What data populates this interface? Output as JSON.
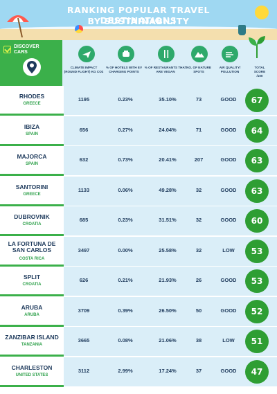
{
  "title": {
    "line1": "RANKING POPULAR TRAVEL DESTINATIONS",
    "line2": "BY SUSTAINABILITY"
  },
  "brand": {
    "label": "DISCOVER CARS"
  },
  "columns": [
    {
      "label": "CLIMATE IMPACT (ROUND FLIGHT) KG CO2",
      "icon": "plane-icon"
    },
    {
      "label": "% OF HOTELS WITH EV CHARGING POINTS",
      "icon": "ev-car-icon"
    },
    {
      "label": "% OF RESTAURANTS THAT ARE VEGAN",
      "icon": "cutlery-icon"
    },
    {
      "label": "NO. OF NATURE SPOTS",
      "icon": "mountain-icon"
    },
    {
      "label": "AIR QUALITY/ POLLUTION",
      "icon": "wind-icon"
    },
    {
      "label": "TOTAL SCORE /100",
      "icon": "plant-icon"
    }
  ],
  "rows": [
    {
      "city": "RHODES",
      "country": "GREECE",
      "co2": "1195",
      "ev": "0.23%",
      "vegan": "35.10%",
      "nature": "73",
      "air": "GOOD",
      "score": "67"
    },
    {
      "city": "IBIZA",
      "country": "SPAIN",
      "co2": "656",
      "ev": "0.27%",
      "vegan": "24.04%",
      "nature": "71",
      "air": "GOOD",
      "score": "64"
    },
    {
      "city": "MAJORCA",
      "country": "SPAIN",
      "co2": "632",
      "ev": "0.73%",
      "vegan": "20.41%",
      "nature": "207",
      "air": "GOOD",
      "score": "63"
    },
    {
      "city": "SANTORINI",
      "country": "GREECE",
      "co2": "1133",
      "ev": "0.06%",
      "vegan": "49.28%",
      "nature": "32",
      "air": "GOOD",
      "score": "63"
    },
    {
      "city": "DUBROVNIK",
      "country": "CROATIA",
      "co2": "685",
      "ev": "0.23%",
      "vegan": "31.51%",
      "nature": "32",
      "air": "GOOD",
      "score": "60"
    },
    {
      "city": "LA FORTUNA DE SAN CARLOS",
      "country": "COSTA RICA",
      "co2": "3497",
      "ev": "0.00%",
      "vegan": "25.58%",
      "nature": "32",
      "air": "LOW",
      "score": "53"
    },
    {
      "city": "SPLIT",
      "country": "CROATIA",
      "co2": "626",
      "ev": "0.21%",
      "vegan": "21.93%",
      "nature": "26",
      "air": "GOOD",
      "score": "53"
    },
    {
      "city": "ARUBA",
      "country": "ARUBA",
      "co2": "3709",
      "ev": "0.39%",
      "vegan": "26.50%",
      "nature": "50",
      "air": "GOOD",
      "score": "52"
    },
    {
      "city": "ZANZIBAR ISLAND",
      "country": "TANZANIA",
      "co2": "3665",
      "ev": "0.08%",
      "vegan": "21.06%",
      "nature": "38",
      "air": "LOW",
      "score": "51"
    },
    {
      "city": "CHARLESTON",
      "country": "UNITED STATES",
      "co2": "3112",
      "ev": "2.99%",
      "vegan": "17.24%",
      "nature": "37",
      "air": "GOOD",
      "score": "47"
    }
  ],
  "colors": {
    "green": "#3bb04a",
    "score_green": "#2e9e33",
    "navy": "#1e3a5c",
    "row_band": "#daeef8"
  }
}
